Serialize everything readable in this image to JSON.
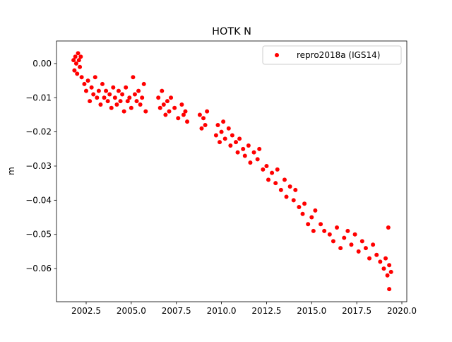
{
  "chart_data": {
    "type": "scatter",
    "title": "HOTK N",
    "y_label": "m",
    "xlim": [
      2000.856,
      2020.274
    ],
    "ylim": [
      -0.0697,
      0.0066
    ],
    "xticks": [
      2002.5,
      {
        "value": 2005,
        "label": "2005.0"
      },
      2007.5,
      {
        "value": 2010,
        "label": "2010.0"
      },
      2012.5,
      {
        "value": 2015,
        "label": "2015.0"
      },
      2017.5,
      {
        "value": 2020,
        "label": "2020.0"
      }
    ],
    "yticks": [
      {
        "value": 0,
        "label": "0.00"
      },
      {
        "value": -0.01,
        "label": "−0.01"
      },
      {
        "value": -0.02,
        "label": "−0.02"
      },
      {
        "value": -0.03,
        "label": "−0.03"
      },
      {
        "value": -0.04,
        "label": "−0.04"
      },
      {
        "value": -0.05,
        "label": "−0.05"
      },
      {
        "value": -0.06,
        "label": "−0.06"
      }
    ],
    "legend": "upper right",
    "series": [
      {
        "name": "repro2018a (IGS14)",
        "color": "#ff0000",
        "x": [
          2001.8,
          2001.85,
          2001.9,
          2001.95,
          2002.0,
          2002.05,
          2002.1,
          2002.15,
          2002.2,
          2002.25,
          2002.4,
          2002.5,
          2002.6,
          2002.7,
          2002.8,
          2002.9,
          2003.0,
          2003.1,
          2003.2,
          2003.3,
          2003.4,
          2003.5,
          2003.6,
          2003.7,
          2003.8,
          2003.9,
          2004.0,
          2004.1,
          2004.2,
          2004.3,
          2004.4,
          2004.5,
          2004.6,
          2004.7,
          2004.8,
          2004.9,
          2005.0,
          2005.1,
          2005.2,
          2005.3,
          2005.4,
          2005.5,
          2005.6,
          2005.7,
          2005.8,
          2006.5,
          2006.6,
          2006.7,
          2006.8,
          2006.9,
          2007.0,
          2007.1,
          2007.2,
          2007.4,
          2007.6,
          2007.8,
          2007.9,
          2008.0,
          2008.1,
          2008.8,
          2008.9,
          2009.0,
          2009.1,
          2009.2,
          2009.7,
          2009.8,
          2009.9,
          2010.0,
          2010.1,
          2010.2,
          2010.4,
          2010.5,
          2010.6,
          2010.8,
          2010.9,
          2011.0,
          2011.2,
          2011.3,
          2011.5,
          2011.6,
          2011.8,
          2012.0,
          2012.1,
          2012.3,
          2012.5,
          2012.6,
          2012.8,
          2013.0,
          2013.1,
          2013.3,
          2013.5,
          2013.6,
          2013.8,
          2014.0,
          2014.1,
          2014.3,
          2014.5,
          2014.6,
          2014.8,
          2015.0,
          2015.1,
          2015.2,
          2015.5,
          2015.7,
          2016.0,
          2016.2,
          2016.4,
          2016.6,
          2016.8,
          2017.0,
          2017.2,
          2017.4,
          2017.6,
          2017.8,
          2018.0,
          2018.2,
          2018.4,
          2018.6,
          2018.8,
          2019.0,
          2019.1,
          2019.2,
          2019.3,
          2019.4,
          2019.3,
          2019.25
        ],
        "values": [
          0.001,
          -0.002,
          0.002,
          0.0,
          -0.003,
          0.003,
          0.001,
          -0.001,
          0.002,
          -0.004,
          -0.006,
          -0.008,
          -0.005,
          -0.011,
          -0.007,
          -0.009,
          -0.004,
          -0.01,
          -0.008,
          -0.012,
          -0.006,
          -0.01,
          -0.008,
          -0.011,
          -0.009,
          -0.013,
          -0.007,
          -0.01,
          -0.012,
          -0.008,
          -0.011,
          -0.009,
          -0.014,
          -0.007,
          -0.011,
          -0.01,
          -0.013,
          -0.004,
          -0.009,
          -0.011,
          -0.008,
          -0.012,
          -0.01,
          -0.006,
          -0.014,
          -0.01,
          -0.013,
          -0.008,
          -0.012,
          -0.015,
          -0.011,
          -0.014,
          -0.01,
          -0.013,
          -0.016,
          -0.012,
          -0.015,
          -0.014,
          -0.017,
          -0.015,
          -0.019,
          -0.016,
          -0.018,
          -0.014,
          -0.021,
          -0.018,
          -0.023,
          -0.02,
          -0.017,
          -0.022,
          -0.019,
          -0.024,
          -0.021,
          -0.023,
          -0.026,
          -0.022,
          -0.025,
          -0.027,
          -0.024,
          -0.029,
          -0.026,
          -0.028,
          -0.025,
          -0.031,
          -0.03,
          -0.034,
          -0.032,
          -0.035,
          -0.031,
          -0.037,
          -0.034,
          -0.039,
          -0.036,
          -0.04,
          -0.037,
          -0.042,
          -0.044,
          -0.041,
          -0.047,
          -0.045,
          -0.049,
          -0.043,
          -0.047,
          -0.049,
          -0.05,
          -0.052,
          -0.048,
          -0.054,
          -0.051,
          -0.049,
          -0.053,
          -0.05,
          -0.055,
          -0.052,
          -0.054,
          -0.057,
          -0.053,
          -0.056,
          -0.058,
          -0.06,
          -0.057,
          -0.062,
          -0.059,
          -0.061,
          -0.066,
          -0.048
        ]
      }
    ]
  }
}
